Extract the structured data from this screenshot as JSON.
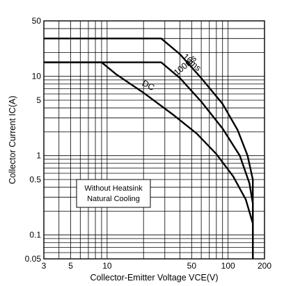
{
  "chart_data": {
    "type": "line",
    "title": "",
    "xlabel": "Collector-Emitter Voltage VCE(V)",
    "ylabel": "Collector Current IC(A)",
    "x_scale": "log",
    "y_scale": "log",
    "xlim": [
      3,
      200
    ],
    "ylim": [
      0.05,
      50
    ],
    "grid": true,
    "x_ticks": [
      3,
      5,
      10,
      50,
      100,
      200
    ],
    "x_tick_labels": [
      "3",
      "5",
      "10",
      "50",
      "100",
      "200"
    ],
    "y_ticks": [
      0.05,
      0.1,
      0.5,
      1,
      5,
      10,
      50
    ],
    "y_tick_labels": [
      "0.05",
      "0.1",
      "0.5",
      "1",
      "5",
      "10",
      "50"
    ],
    "series": [
      {
        "name": "10ms",
        "points": [
          [
            3,
            30
          ],
          [
            28,
            30
          ],
          [
            40,
            19
          ],
          [
            60,
            9.5
          ],
          [
            90,
            4.5
          ],
          [
            120,
            2.1
          ],
          [
            145,
            1.0
          ],
          [
            160,
            0.5
          ],
          [
            160,
            0.05
          ]
        ]
      },
      {
        "name": "100ms",
        "points": [
          [
            3,
            15
          ],
          [
            28,
            15
          ],
          [
            40,
            9.5
          ],
          [
            60,
            4.8
          ],
          [
            90,
            2.2
          ],
          [
            125,
            1.0
          ],
          [
            150,
            0.45
          ],
          [
            160,
            0.25
          ],
          [
            160,
            0.05
          ]
        ]
      },
      {
        "name": "DC",
        "points": [
          [
            3,
            15
          ],
          [
            9,
            15
          ],
          [
            12,
            10.5
          ],
          [
            20,
            6.2
          ],
          [
            35,
            3.3
          ],
          [
            55,
            1.9
          ],
          [
            80,
            1.05
          ],
          [
            110,
            0.55
          ],
          [
            140,
            0.28
          ],
          [
            160,
            0.14
          ],
          [
            160,
            0.05
          ]
        ]
      }
    ],
    "annotation": {
      "lines": [
        "Without Heatsink",
        "Natural Cooling"
      ]
    },
    "style": {
      "line_color": "#000000",
      "grid_color": "#000000",
      "background": "#ffffff"
    }
  }
}
